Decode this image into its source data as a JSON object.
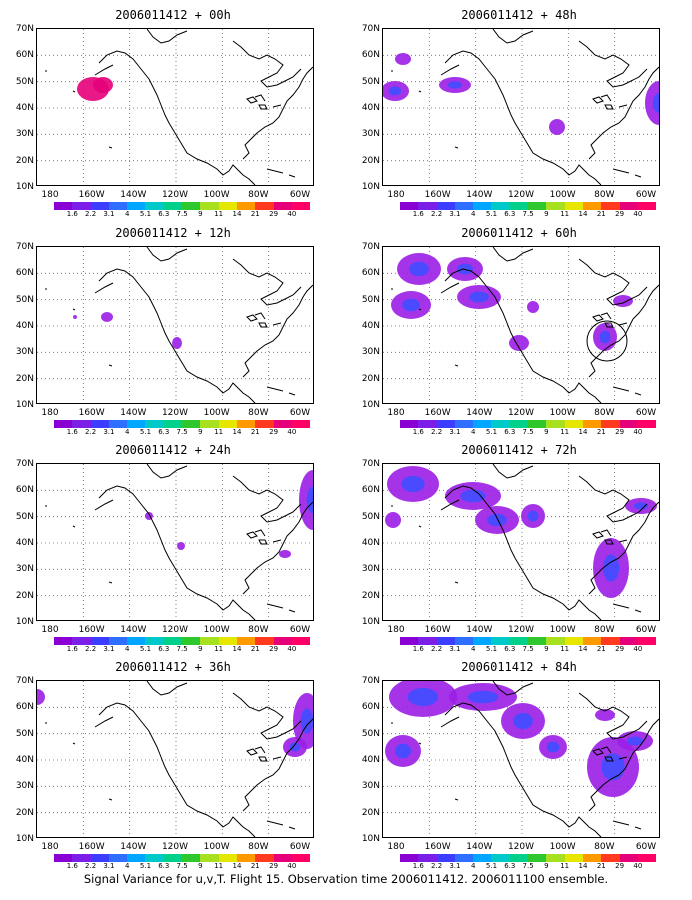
{
  "caption": "Signal Variance for u,v,T. Flight 15. Observation time 2006011412. 2006011100 ensemble.",
  "lat_labels": [
    "70N",
    "60N",
    "50N",
    "40N",
    "30N",
    "20N",
    "10N"
  ],
  "lon_labels": [
    "180",
    "160W",
    "140W",
    "120W",
    "100W",
    "80W",
    "60W"
  ],
  "colorbar": {
    "labels": [
      "1.6",
      "2.2",
      "3.1",
      "4",
      "5.1",
      "6.3",
      "7.5",
      "9",
      "11",
      "14",
      "21",
      "29",
      "40"
    ],
    "colors": [
      "#8a00d4",
      "#7a1ee8",
      "#3d3dff",
      "#2f6fff",
      "#00a6ff",
      "#00c9c9",
      "#00d08a",
      "#2ec82e",
      "#a6e01e",
      "#e6e600",
      "#ff9900",
      "#ff3a1e",
      "#e6007a",
      "#ff0066"
    ]
  },
  "panels": [
    {
      "title": "2006011412 + 00h",
      "lead": "00h"
    },
    {
      "title": "2006011412 + 48h",
      "lead": "48h"
    },
    {
      "title": "2006011412 + 12h",
      "lead": "12h"
    },
    {
      "title": "2006011412 + 60h",
      "lead": "60h"
    },
    {
      "title": "2006011412 + 24h",
      "lead": "24h"
    },
    {
      "title": "2006011412 + 72h",
      "lead": "72h"
    },
    {
      "title": "2006011412 + 36h",
      "lead": "36h"
    },
    {
      "title": "2006011412 + 84h",
      "lead": "84h"
    }
  ]
}
